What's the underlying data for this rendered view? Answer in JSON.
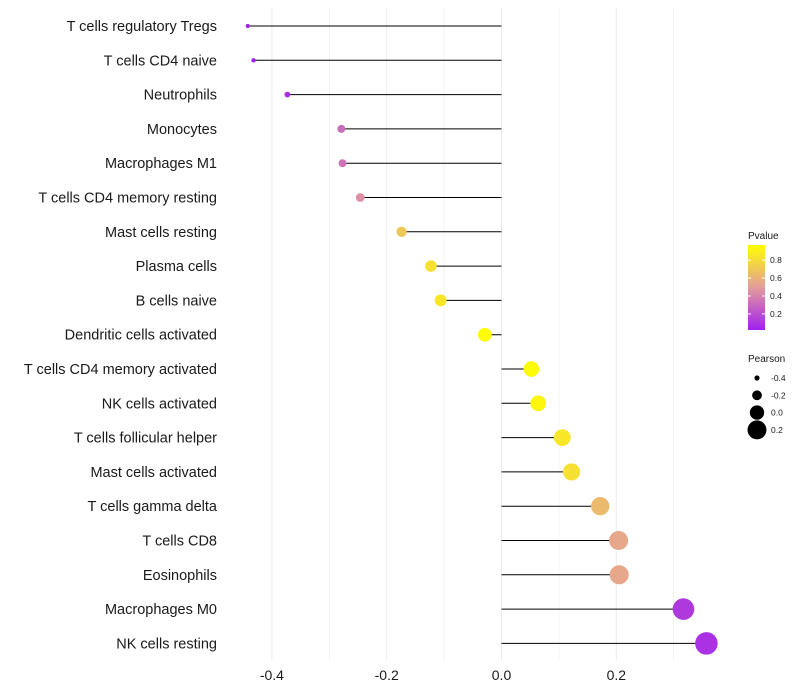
{
  "chart_data": {
    "type": "lollipop",
    "categories": [
      "T cells regulatory  Tregs",
      "T cells CD4 naive",
      "Neutrophils",
      "Monocytes",
      "Macrophages M1",
      "T cells CD4 memory resting",
      "Mast cells resting",
      "Plasma cells",
      "B cells naive",
      "Dendritic cells activated",
      "T cells CD4 memory activated",
      "NK cells activated",
      "T cells follicular helper",
      "Mast cells activated",
      "T cells gamma delta",
      "T cells CD8",
      "Eosinophils",
      "Macrophages M0",
      "NK cells resting"
    ],
    "pearson": [
      -0.442,
      -0.432,
      -0.373,
      -0.279,
      -0.277,
      -0.246,
      -0.174,
      -0.123,
      -0.106,
      -0.029,
      0.052,
      0.064,
      0.106,
      0.122,
      0.172,
      0.204,
      0.205,
      0.317,
      0.357
    ],
    "pvalue": [
      0.02,
      0.02,
      0.08,
      0.32,
      0.34,
      0.45,
      0.7,
      0.82,
      0.85,
      0.97,
      0.95,
      0.93,
      0.85,
      0.82,
      0.64,
      0.55,
      0.55,
      0.12,
      0.09
    ],
    "xlim": [
      -0.48,
      0.39
    ],
    "xticks": [
      -0.4,
      -0.2,
      0.0,
      0.2
    ],
    "xtick_labels": [
      "-0.4",
      "-0.2",
      "0.0",
      "0.2"
    ],
    "xlabel": "",
    "ylabel": "",
    "grid": true,
    "legend_pvalue": {
      "title": "Pvalue",
      "range": [
        0.02,
        0.97
      ],
      "ticks": [
        0.8,
        0.6,
        0.4,
        0.2
      ],
      "tick_labels": [
        "0.8",
        "0.6",
        "0.4",
        "0.2"
      ],
      "color_low": "#a020f0",
      "color_mid": "#e39c9c",
      "color_high": "#ffff00"
    },
    "legend_pearson": {
      "title": "Pearson",
      "values": [
        -0.4,
        -0.2,
        0.0,
        0.2
      ],
      "labels": [
        "-0.4",
        "-0.2",
        "0.0",
        "0.2"
      ]
    },
    "line_color": "#000000",
    "grid_color": "#ebebeb"
  }
}
